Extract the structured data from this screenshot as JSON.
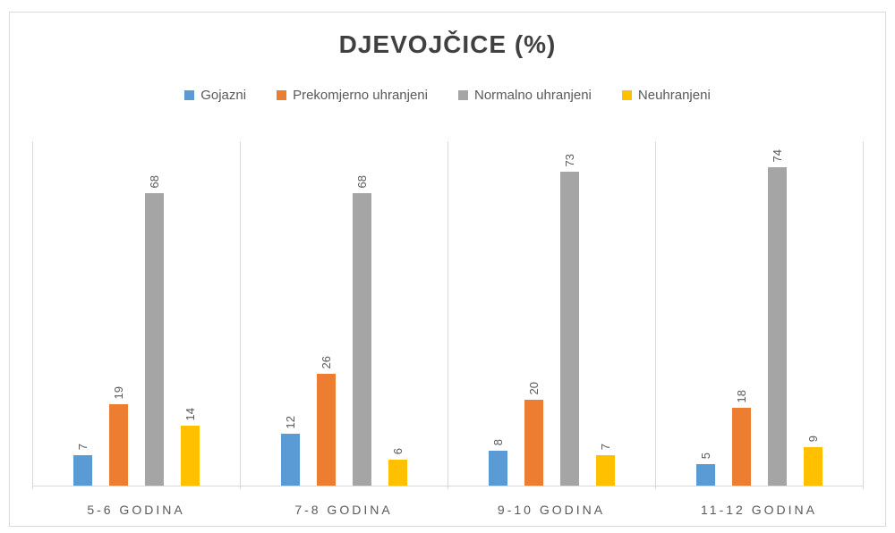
{
  "colors": {
    "background": "#ffffff",
    "frame_border": "#d9d9d9",
    "axis_line": "#d9d9d9",
    "title_text": "#404040",
    "label_text": "#595959"
  },
  "chart_data": {
    "type": "bar",
    "title": "DJEVOJČICE (%)",
    "unit": "%",
    "categories": [
      "5-6 GODINA",
      "7-8 GODINA",
      "9-10 GODINA",
      "11-12 GODINA"
    ],
    "series": [
      {
        "name": "Gojazni",
        "color": "#5b9bd5",
        "values": [
          7,
          12,
          8,
          5
        ]
      },
      {
        "name": "Prekomjerno uhranjeni",
        "color": "#ed7d31",
        "values": [
          19,
          26,
          20,
          18
        ]
      },
      {
        "name": "Normalno uhranjeni",
        "color": "#a5a5a5",
        "values": [
          68,
          68,
          73,
          74
        ]
      },
      {
        "name": "Neuhranjeni",
        "color": "#ffc000",
        "values": [
          14,
          6,
          7,
          9
        ]
      }
    ],
    "ylim": [
      0,
      80
    ],
    "y_axis_labels_visible": false,
    "data_labels": true,
    "data_label_rotation": "vertical-bottom-to-top",
    "legend_position": "top",
    "gridlines": "vertical-category-separators"
  }
}
